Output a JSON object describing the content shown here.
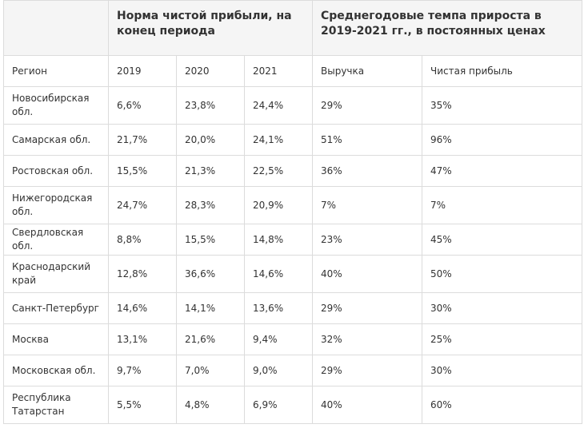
{
  "table": {
    "group_headers": [
      "",
      "Норма чистой прибыли, на конец периода",
      "Среднегодовые темпа прироста в 2019-2021 гг., в постоянных ценах"
    ],
    "columns": [
      "Регион",
      "2019",
      "2020",
      "2021",
      "Выручка",
      "Чистая прибыль"
    ],
    "rows": [
      [
        "Новосибирская обл.",
        "6,6%",
        "23,8%",
        "24,4%",
        "29%",
        "35%"
      ],
      [
        "Самарская обл.",
        "21,7%",
        "20,0%",
        "24,1%",
        "51%",
        "96%"
      ],
      [
        "Ростовская обл.",
        "15,5%",
        "21,3%",
        "22,5%",
        "36%",
        "47%"
      ],
      [
        "Нижегородская обл.",
        "24,7%",
        "28,3%",
        "20,9%",
        "7%",
        "7%"
      ],
      [
        "Свердловская обл.",
        "8,8%",
        "15,5%",
        "14,8%",
        "23%",
        "45%"
      ],
      [
        "Краснодарский край",
        "12,8%",
        "36,6%",
        "14,6%",
        "40%",
        "50%"
      ],
      [
        "Санкт-Петербург",
        "14,6%",
        "14,1%",
        "13,6%",
        "29%",
        "30%"
      ],
      [
        "Москва",
        "13,1%",
        "21,6%",
        "9,4%",
        "32%",
        "25%"
      ],
      [
        "Московская обл.",
        "9,7%",
        "7,0%",
        "9,0%",
        "29%",
        "30%"
      ],
      [
        "Республика Татарстан",
        "5,5%",
        "4,8%",
        "6,9%",
        "40%",
        "60%"
      ]
    ]
  }
}
